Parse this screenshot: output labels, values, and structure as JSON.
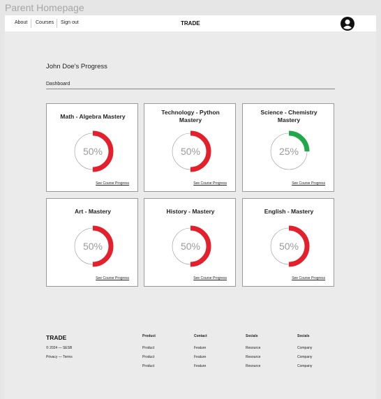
{
  "header": {
    "title": "Parent Homepage",
    "nav": [
      "About",
      "Courses",
      "Sign out"
    ],
    "brand": "TRADE"
  },
  "main": {
    "heading": "John Doe's Progress",
    "tab": "Dashboard",
    "cards": [
      {
        "title": "Math - Algebra Mastery",
        "progress": {
          "value": 50,
          "label": "50%"
        },
        "color": "#e3202b",
        "link": "See Course Progress"
      },
      {
        "title": "Technology - Python Mastery",
        "progress": {
          "value": 50,
          "label": "50%"
        },
        "color": "#e3202b",
        "link": "See Course Progress"
      },
      {
        "title": "Science - Chemistry Mastery",
        "progress": {
          "value": 25,
          "label": "25%"
        },
        "color": "#21a84a",
        "link": "See Course Progress"
      },
      {
        "title": "Art - Mastery",
        "progress": {
          "value": 50,
          "label": "50%"
        },
        "color": "#e3202b",
        "link": "See Course Progress"
      },
      {
        "title": "History - Mastery",
        "progress": {
          "value": 50,
          "label": "50%"
        },
        "color": "#e3202b",
        "link": "See Course Progress"
      },
      {
        "title": "English - Mastery",
        "progress": {
          "value": 50,
          "label": "50%"
        },
        "color": "#e3202b",
        "link": "See Course Progress"
      }
    ]
  },
  "footer": {
    "brand": "TRADE",
    "copyright": "© 2024 — SESB",
    "legal": "Privacy — Terms",
    "columns": [
      {
        "heading": "Product",
        "items": [
          "Product",
          "Product",
          "Product"
        ]
      },
      {
        "heading": "Contact",
        "items": [
          "Feature",
          "Feature",
          "Feature"
        ]
      },
      {
        "heading": "Socials",
        "items": [
          "Resource",
          "Resource",
          "Resource"
        ]
      },
      {
        "heading": "Socials",
        "items": [
          "Company",
          "Company",
          "Company"
        ]
      }
    ]
  }
}
